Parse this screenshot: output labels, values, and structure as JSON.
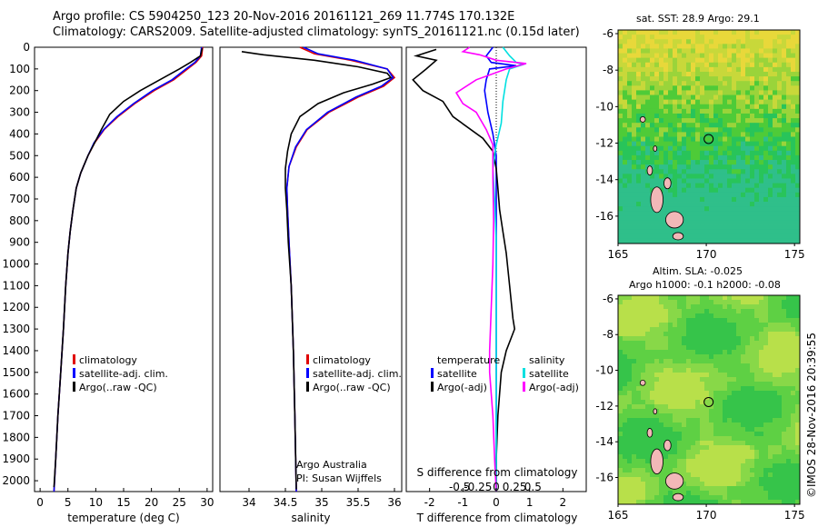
{
  "header": {
    "title_line1": "Argo profile: CS 5904250_123 20-Nov-2016 20161121_269 11.774S 170.132E",
    "title_line2": "Climatology: CARS2009. Satellite-adjusted climatology: synTS_20161121.nc (0.15d later)"
  },
  "colors": {
    "climatology": "#e00000",
    "satellite": "#0000ff",
    "argo": "#000000",
    "sat_salinity": "#00e0e0",
    "argo_adj_salinity": "#ff00ff"
  },
  "panels": {
    "temperature": {
      "xlabel": "temperature (deg C)",
      "legend": [
        "climatology",
        "satellite-adj. clim.",
        "Argo(..raw -QC)"
      ]
    },
    "salinity": {
      "xlabel": "salinity",
      "legend": [
        "climatology",
        "satellite-adj. clim.",
        "Argo(..raw -QC)"
      ],
      "note1": "Argo Australia",
      "note2": "PI: Susan Wijffels"
    },
    "difference": {
      "legend_header_t": "temperature",
      "legend_header_s": "salinity",
      "legend_t": [
        "satellite",
        "Argo(-adj)"
      ],
      "legend_s": [
        "satellite",
        "Argo(-adj)"
      ],
      "top_label": "S difference from climatology",
      "bottom_label": "T difference from climatology",
      "top_ticks": [
        "-0.5",
        "-0.25",
        "0",
        "0.25",
        "0.5"
      ]
    },
    "sst_map": {
      "title": "sat. SST: 28.9 Argo: 29.1",
      "yticks": [
        "-6",
        "-8",
        "-10",
        "-12",
        "-14",
        "-16"
      ],
      "xticks": [
        "165",
        "170",
        "175"
      ]
    },
    "sla_map": {
      "title_line1": "Altim. SLA: -0.025",
      "title_line2": "Argo h1000: -0.1 h2000: -0.08",
      "yticks": [
        "-6",
        "-8",
        "-10",
        "-12",
        "-14",
        "-16"
      ],
      "xticks": [
        "165",
        "170",
        "175"
      ]
    }
  },
  "stamp": "©IMOS 28-Nov-2016 20:39:55",
  "chart_data": [
    {
      "type": "line",
      "name": "temperature profile",
      "xlabel": "temperature (deg C)",
      "ylabel": "",
      "xlim": [
        -1,
        31
      ],
      "ylim": [
        2050,
        0
      ],
      "xticks": [
        0,
        5,
        10,
        15,
        20,
        25,
        30
      ],
      "yticks": [
        0,
        100,
        200,
        300,
        400,
        500,
        600,
        700,
        800,
        900,
        1000,
        1100,
        1200,
        1300,
        1400,
        1500,
        1600,
        1700,
        1800,
        1900,
        2000
      ],
      "series": [
        {
          "name": "climatology",
          "color": "#e00000",
          "points": [
            [
              29.2,
              0
            ],
            [
              29.0,
              40
            ],
            [
              28.0,
              70
            ],
            [
              26.5,
              100
            ],
            [
              24.0,
              150
            ],
            [
              20.5,
              200
            ],
            [
              17.0,
              260
            ],
            [
              14.0,
              320
            ],
            [
              11.5,
              380
            ],
            [
              9.8,
              440
            ],
            [
              8.6,
              500
            ],
            [
              7.3,
              580
            ],
            [
              6.5,
              650
            ],
            [
              5.9,
              750
            ],
            [
              5.4,
              850
            ],
            [
              5.0,
              950
            ],
            [
              4.6,
              1100
            ],
            [
              4.2,
              1300
            ],
            [
              3.7,
              1500
            ],
            [
              3.2,
              1700
            ],
            [
              2.8,
              1900
            ],
            [
              2.5,
              2050
            ]
          ]
        },
        {
          "name": "satellite-adj. clim.",
          "color": "#0000ff",
          "points": [
            [
              29.0,
              0
            ],
            [
              28.8,
              40
            ],
            [
              27.8,
              70
            ],
            [
              26.2,
              100
            ],
            [
              23.7,
              150
            ],
            [
              20.2,
              200
            ],
            [
              16.8,
              260
            ],
            [
              13.8,
              320
            ],
            [
              11.4,
              380
            ],
            [
              9.7,
              440
            ],
            [
              8.6,
              500
            ],
            [
              7.3,
              580
            ],
            [
              6.5,
              650
            ],
            [
              5.9,
              750
            ],
            [
              5.4,
              850
            ],
            [
              5.0,
              950
            ],
            [
              4.6,
              1100
            ],
            [
              4.2,
              1300
            ],
            [
              3.7,
              1500
            ],
            [
              3.2,
              1700
            ],
            [
              2.8,
              1900
            ],
            [
              2.5,
              2050
            ]
          ]
        },
        {
          "name": "Argo(..raw -QC)",
          "color": "#000000",
          "points": [
            [
              29.1,
              5
            ],
            [
              28.8,
              40
            ],
            [
              27.0,
              70
            ],
            [
              25.0,
              100
            ],
            [
              21.5,
              150
            ],
            [
              18.0,
              200
            ],
            [
              15.0,
              250
            ],
            [
              12.5,
              310
            ],
            [
              11.0,
              380
            ],
            [
              9.8,
              440
            ],
            [
              8.6,
              500
            ],
            [
              7.3,
              580
            ],
            [
              6.5,
              650
            ],
            [
              5.9,
              750
            ],
            [
              5.4,
              850
            ],
            [
              5.0,
              950
            ],
            [
              4.6,
              1100
            ],
            [
              4.2,
              1300
            ],
            [
              3.7,
              1500
            ],
            [
              3.2,
              1700
            ],
            [
              2.8,
              1900
            ],
            [
              2.5,
              2030
            ]
          ]
        }
      ]
    },
    {
      "type": "line",
      "name": "salinity profile",
      "xlabel": "salinity",
      "ylabel": "",
      "xlim": [
        33.6,
        36.1
      ],
      "ylim": [
        2050,
        0
      ],
      "xticks": [
        34,
        34.5,
        35,
        35.5,
        36
      ],
      "series": [
        {
          "name": "climatology",
          "color": "#e00000",
          "points": [
            [
              34.7,
              0
            ],
            [
              34.9,
              30
            ],
            [
              35.4,
              60
            ],
            [
              35.9,
              100
            ],
            [
              36.0,
              140
            ],
            [
              35.85,
              180
            ],
            [
              35.5,
              230
            ],
            [
              35.1,
              300
            ],
            [
              34.8,
              380
            ],
            [
              34.65,
              460
            ],
            [
              34.55,
              550
            ],
            [
              34.52,
              650
            ],
            [
              34.53,
              750
            ],
            [
              34.55,
              900
            ],
            [
              34.58,
              1100
            ],
            [
              34.61,
              1400
            ],
            [
              34.63,
              1700
            ],
            [
              34.65,
              2050
            ]
          ]
        },
        {
          "name": "satellite-adj. clim.",
          "color": "#0000ff",
          "points": [
            [
              34.75,
              0
            ],
            [
              34.95,
              30
            ],
            [
              35.45,
              60
            ],
            [
              35.9,
              100
            ],
            [
              35.98,
              140
            ],
            [
              35.82,
              180
            ],
            [
              35.47,
              230
            ],
            [
              35.08,
              300
            ],
            [
              34.79,
              380
            ],
            [
              34.64,
              460
            ],
            [
              34.55,
              550
            ],
            [
              34.52,
              650
            ],
            [
              34.53,
              750
            ],
            [
              34.55,
              900
            ],
            [
              34.58,
              1100
            ],
            [
              34.61,
              1400
            ],
            [
              34.63,
              1700
            ],
            [
              34.65,
              2050
            ]
          ]
        },
        {
          "name": "Argo(..raw -QC)",
          "color": "#000000",
          "points": [
            [
              33.9,
              20
            ],
            [
              34.1,
              30
            ],
            [
              34.2,
              35
            ],
            [
              34.9,
              60
            ],
            [
              35.5,
              90
            ],
            [
              35.9,
              120
            ],
            [
              35.95,
              140
            ],
            [
              35.7,
              170
            ],
            [
              35.3,
              210
            ],
            [
              34.95,
              260
            ],
            [
              34.7,
              320
            ],
            [
              34.58,
              400
            ],
            [
              34.53,
              480
            ],
            [
              34.5,
              560
            ],
            [
              34.5,
              650
            ],
            [
              34.52,
              750
            ],
            [
              34.54,
              900
            ],
            [
              34.58,
              1100
            ],
            [
              34.61,
              1400
            ],
            [
              34.63,
              1700
            ],
            [
              34.65,
              2040
            ]
          ]
        }
      ]
    },
    {
      "type": "line",
      "name": "difference from climatology",
      "xlabel": "T difference from climatology",
      "x2label": "S difference from climatology",
      "xlim": [
        -2.7,
        2.7
      ],
      "ylim": [
        2050,
        0
      ],
      "xticks": [
        -2,
        -1,
        0,
        1,
        2
      ],
      "series": [
        {
          "name": "temperature satellite",
          "color": "#0000ff",
          "points": [
            [
              -0.1,
              0
            ],
            [
              -0.3,
              40
            ],
            [
              -0.15,
              70
            ],
            [
              0.6,
              85
            ],
            [
              -0.2,
              100
            ],
            [
              -0.3,
              150
            ],
            [
              -0.35,
              200
            ],
            [
              -0.25,
              300
            ],
            [
              -0.1,
              400
            ],
            [
              0,
              500
            ],
            [
              0,
              700
            ],
            [
              0,
              1000
            ],
            [
              0,
              1500
            ],
            [
              0,
              2050
            ]
          ]
        },
        {
          "name": "temperature Argo(-adj)",
          "color": "#000000",
          "points": [
            [
              -1.8,
              10
            ],
            [
              -2.4,
              40
            ],
            [
              -1.8,
              60
            ],
            [
              -2.1,
              100
            ],
            [
              -2.5,
              150
            ],
            [
              -2.2,
              200
            ],
            [
              -1.6,
              250
            ],
            [
              -1.3,
              320
            ],
            [
              -0.4,
              420
            ],
            [
              -0.1,
              480
            ],
            [
              0,
              560
            ],
            [
              0.05,
              650
            ],
            [
              0.1,
              750
            ],
            [
              0.2,
              850
            ],
            [
              0.3,
              950
            ],
            [
              0.4,
              1100
            ],
            [
              0.5,
              1250
            ],
            [
              0.55,
              1300
            ],
            [
              0.3,
              1400
            ],
            [
              0.15,
              1500
            ],
            [
              0.05,
              1700
            ],
            [
              0,
              1900
            ],
            [
              0,
              2030
            ]
          ]
        },
        {
          "name": "salinity satellite",
          "color": "#00e0e0",
          "points": [
            [
              0.2,
              0
            ],
            [
              0.4,
              40
            ],
            [
              0.6,
              70
            ],
            [
              0.8,
              80
            ],
            [
              0.4,
              100
            ],
            [
              0.3,
              150
            ],
            [
              0.2,
              250
            ],
            [
              0.15,
              350
            ],
            [
              0,
              450
            ],
            [
              -0.05,
              500
            ],
            [
              -0.1,
              560
            ],
            [
              -0.05,
              700
            ],
            [
              0,
              900
            ],
            [
              0,
              1200
            ],
            [
              0,
              1600
            ],
            [
              0,
              2050
            ]
          ]
        },
        {
          "name": "salinity Argo(-adj)",
          "color": "#ff00ff",
          "points": [
            [
              -0.8,
              0
            ],
            [
              -1.0,
              20
            ],
            [
              -0.5,
              35
            ],
            [
              0,
              60
            ],
            [
              0.9,
              75
            ],
            [
              0.3,
              100
            ],
            [
              -0.6,
              150
            ],
            [
              -1.2,
              210
            ],
            [
              -1.0,
              260
            ],
            [
              -0.6,
              300
            ],
            [
              -0.3,
              380
            ],
            [
              -0.1,
              450
            ],
            [
              -0.1,
              600
            ],
            [
              -0.08,
              800
            ],
            [
              -0.1,
              1000
            ],
            [
              -0.15,
              1200
            ],
            [
              -0.2,
              1400
            ],
            [
              -0.2,
              1500
            ],
            [
              -0.1,
              1700
            ],
            [
              -0.05,
              1900
            ],
            [
              0,
              2050
            ]
          ]
        }
      ]
    },
    {
      "type": "heatmap",
      "name": "sat. SST map",
      "title": "sat. SST: 28.9 Argo: 29.1",
      "xlim": [
        165,
        175.3
      ],
      "ylim": [
        -17.5,
        -5.8
      ],
      "xticks": [
        165,
        170,
        175
      ],
      "yticks": [
        -6,
        -8,
        -10,
        -12,
        -14,
        -16
      ],
      "argo_position": [
        170.132,
        -11.774
      ]
    },
    {
      "type": "heatmap",
      "name": "altimetry SLA map",
      "title": "Altim. SLA: -0.025",
      "xlim": [
        165,
        175.3
      ],
      "ylim": [
        -17.5,
        -5.8
      ],
      "xticks": [
        165,
        170,
        175
      ],
      "yticks": [
        -6,
        -8,
        -10,
        -12,
        -14,
        -16
      ],
      "argo_position": [
        170.132,
        -11.774
      ]
    }
  ]
}
